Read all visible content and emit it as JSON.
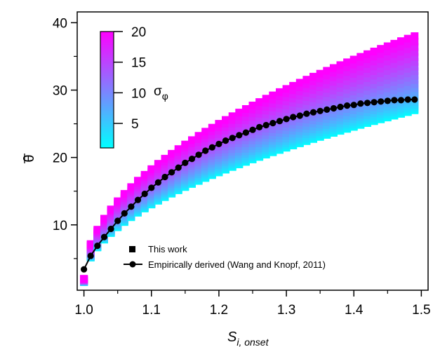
{
  "chart_data": {
    "type": "scatter",
    "xlabel": "S",
    "xlabel_sub": "i, onset",
    "ylabel": "θ",
    "xlim": [
      0.99,
      1.51
    ],
    "ylim": [
      0.3,
      41.6
    ],
    "xticks": [
      "1.0",
      "1.1",
      "1.2",
      "1.3",
      "1.4",
      "1.5"
    ],
    "xtick_values": [
      1.0,
      1.1,
      1.2,
      1.3,
      1.4,
      1.5
    ],
    "yticks": [
      "10",
      "20",
      "30",
      "40"
    ],
    "ytick_values": [
      10,
      20,
      30,
      40
    ],
    "grid": false,
    "colorbar": {
      "label": "σ",
      "label_sub": "φ",
      "ticks": [
        "5",
        "10",
        "15",
        "20"
      ],
      "tick_values": [
        5,
        10,
        15,
        20
      ],
      "range": [
        1,
        20
      ],
      "colors": [
        "#00ffff",
        "#8080ff",
        "#ff00ff"
      ]
    },
    "series": [
      {
        "name": "This work",
        "marker": "square",
        "x_start": 1.0,
        "x_step": 0.01,
        "count": 50,
        "sigma_min": 1,
        "sigma_max": 20,
        "theta_sigma_min_start": 1.5,
        "theta_sigma_min_end": 27.0,
        "theta_sigma_max_start": 2.0,
        "theta_sigma_max_end": 38.0
      },
      {
        "name": "Empirically derived (Wang and Knopf, 2011)",
        "marker": "circle",
        "color": "#000000",
        "x": [
          1.0,
          1.01,
          1.02,
          1.03,
          1.04,
          1.05,
          1.06,
          1.07,
          1.08,
          1.09,
          1.1,
          1.11,
          1.12,
          1.13,
          1.14,
          1.15,
          1.16,
          1.17,
          1.18,
          1.19,
          1.2,
          1.21,
          1.22,
          1.23,
          1.24,
          1.25,
          1.26,
          1.27,
          1.28,
          1.29,
          1.3,
          1.31,
          1.32,
          1.33,
          1.34,
          1.35,
          1.36,
          1.37,
          1.38,
          1.39,
          1.4,
          1.41,
          1.42,
          1.43,
          1.44,
          1.45,
          1.46,
          1.47,
          1.48,
          1.49
        ],
        "y": [
          3.4,
          5.4,
          6.9,
          8.2,
          9.4,
          10.6,
          11.7,
          12.7,
          13.7,
          14.6,
          15.5,
          16.3,
          17.1,
          17.8,
          18.5,
          19.2,
          19.8,
          20.4,
          21.0,
          21.5,
          22.0,
          22.5,
          22.9,
          23.3,
          23.7,
          24.1,
          24.5,
          24.8,
          25.1,
          25.4,
          25.7,
          26.0,
          26.2,
          26.5,
          26.7,
          26.9,
          27.1,
          27.3,
          27.5,
          27.7,
          27.8,
          28.0,
          28.1,
          28.2,
          28.3,
          28.4,
          28.5,
          28.5,
          28.6,
          28.6
        ]
      }
    ]
  }
}
